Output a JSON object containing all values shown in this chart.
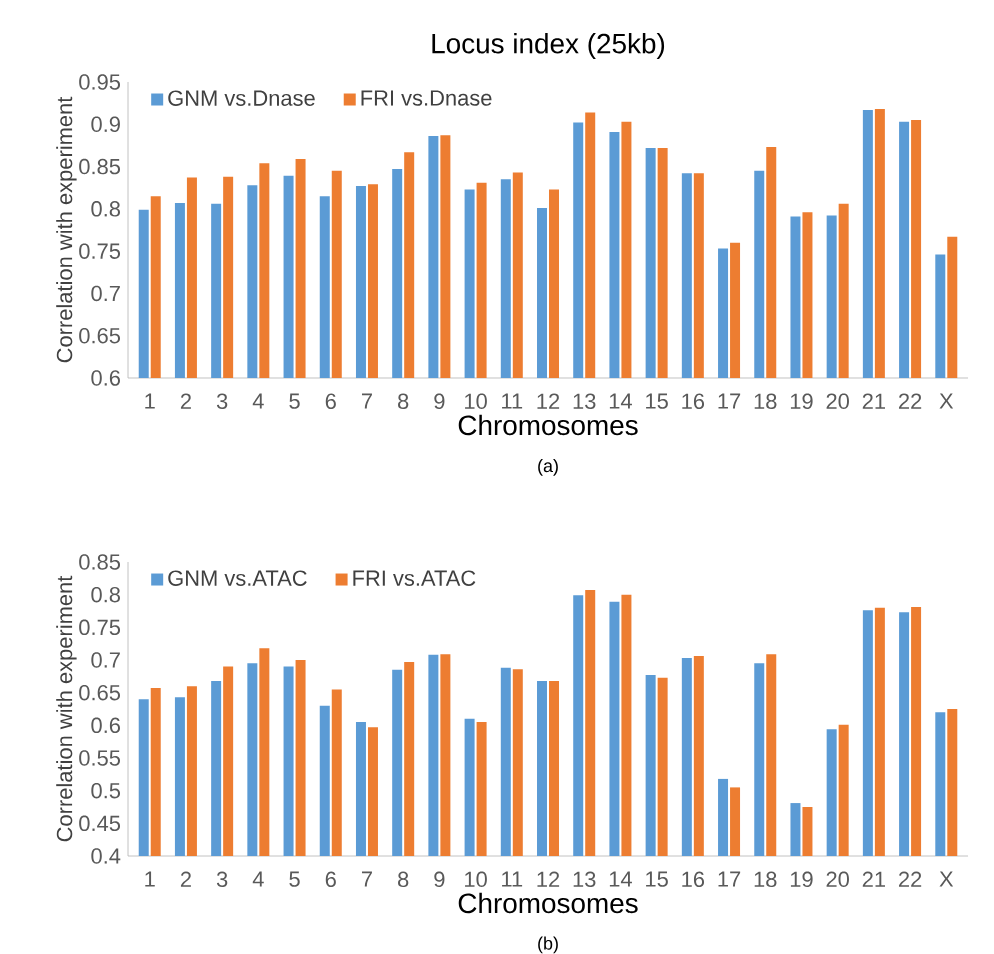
{
  "chart_data": [
    {
      "type": "bar",
      "title": "Locus index (25kb)",
      "xlabel": "Chromosomes",
      "ylabel": "Correlation with experiment",
      "annotations": [
        "(a)"
      ],
      "categories": [
        "1",
        "2",
        "3",
        "4",
        "5",
        "6",
        "7",
        "8",
        "9",
        "10",
        "11",
        "12",
        "13",
        "14",
        "15",
        "16",
        "17",
        "18",
        "19",
        "20",
        "21",
        "22",
        "X"
      ],
      "series": [
        {
          "name": "GNM vs.Dnase",
          "color": "#5b9bd5",
          "values": [
            0.799,
            0.807,
            0.806,
            0.828,
            0.839,
            0.815,
            0.827,
            0.847,
            0.886,
            0.823,
            0.835,
            0.801,
            0.902,
            0.891,
            0.872,
            0.842,
            0.753,
            0.845,
            0.791,
            0.792,
            0.917,
            0.903,
            0.746
          ]
        },
        {
          "name": "FRI vs.Dnase",
          "color": "#ed7d31",
          "values": [
            0.815,
            0.837,
            0.838,
            0.854,
            0.859,
            0.845,
            0.829,
            0.867,
            0.887,
            0.831,
            0.843,
            0.823,
            0.914,
            0.903,
            0.872,
            0.842,
            0.76,
            0.873,
            0.796,
            0.806,
            0.918,
            0.905,
            0.767
          ]
        }
      ],
      "ylim": [
        0.6,
        0.95
      ],
      "yticks": [
        0.6,
        0.65,
        0.7,
        0.75,
        0.8,
        0.85,
        0.9,
        0.95
      ],
      "legend": "top left",
      "grid": false
    },
    {
      "type": "bar",
      "xlabel": "Chromosomes",
      "ylabel": "Correlation with experiment",
      "annotations": [
        "(b)"
      ],
      "categories": [
        "1",
        "2",
        "3",
        "4",
        "5",
        "6",
        "7",
        "8",
        "9",
        "10",
        "11",
        "12",
        "13",
        "14",
        "15",
        "16",
        "17",
        "18",
        "19",
        "20",
        "21",
        "22",
        "X"
      ],
      "series": [
        {
          "name": "GNM vs.ATAC",
          "color": "#5b9bd5",
          "values": [
            0.64,
            0.643,
            0.668,
            0.695,
            0.69,
            0.63,
            0.605,
            0.685,
            0.708,
            0.61,
            0.688,
            0.668,
            0.799,
            0.789,
            0.677,
            0.703,
            0.518,
            0.695,
            0.481,
            0.594,
            0.776,
            0.773,
            0.62
          ]
        },
        {
          "name": "FRI vs.ATAC",
          "color": "#ed7d31",
          "values": [
            0.657,
            0.66,
            0.69,
            0.718,
            0.7,
            0.655,
            0.597,
            0.697,
            0.709,
            0.605,
            0.686,
            0.668,
            0.807,
            0.8,
            0.673,
            0.706,
            0.505,
            0.709,
            0.475,
            0.601,
            0.78,
            0.781,
            0.625
          ]
        }
      ],
      "ylim": [
        0.4,
        0.85
      ],
      "yticks": [
        0.4,
        0.45,
        0.5,
        0.55,
        0.6,
        0.65,
        0.7,
        0.75,
        0.8,
        0.85
      ],
      "legend": "top left",
      "grid": false
    }
  ]
}
